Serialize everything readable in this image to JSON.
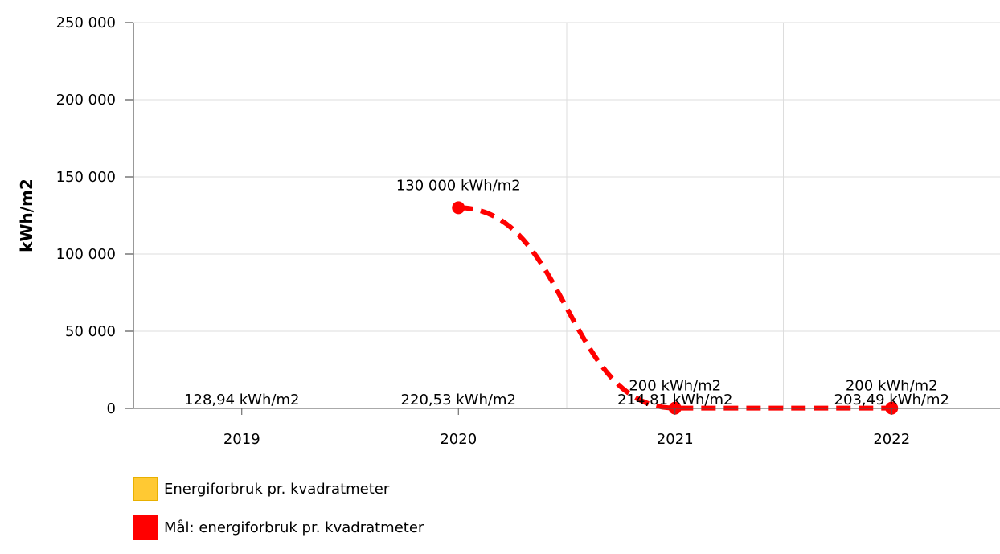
{
  "chart_data": {
    "type": "bar",
    "categories": [
      "2019",
      "2020",
      "2021",
      "2022"
    ],
    "ylabel": "kWh/m2",
    "ylim": [
      0,
      250000
    ],
    "yticks": [
      0,
      50000,
      100000,
      150000,
      200000,
      250000
    ],
    "ytick_labels": [
      "0",
      "50 000",
      "100 000",
      "150 000",
      "200 000",
      "250 000"
    ],
    "grid": true,
    "legend_position": "bottom-left",
    "series": [
      {
        "name": "Energiforbruk pr. kvadratmeter",
        "type": "bar",
        "color": "#FFC933",
        "values": [
          128.94,
          220.53,
          214.81,
          203.49
        ],
        "labels": [
          "128,94 kWh/m2",
          "220,53 kWh/m2",
          "214,81 kWh/m2",
          "203,49 kWh/m2"
        ]
      },
      {
        "name": "Mål: energiforbruk pr. kvadratmeter",
        "type": "line",
        "style": "dashed-spline",
        "color": "#FF0000",
        "values": [
          null,
          130000,
          200,
          200
        ],
        "labels": [
          null,
          "130 000 kWh/m2",
          "200 kWh/m2",
          "200 kWh/m2"
        ]
      }
    ]
  }
}
